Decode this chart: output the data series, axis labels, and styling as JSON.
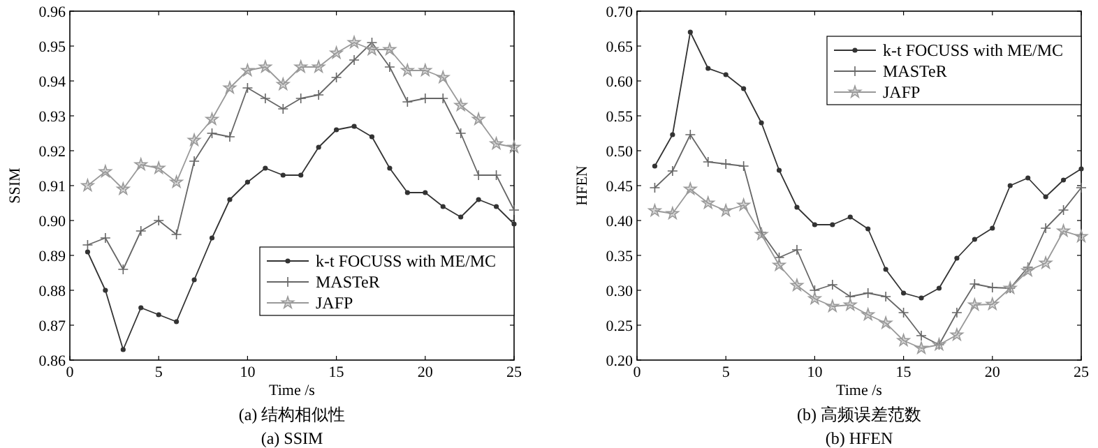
{
  "chart_data": [
    {
      "type": "line",
      "xlabel": "Time /s",
      "ylabel": "SSIM",
      "annotations": [
        "(a) 结构相似性",
        "(a) SSIM"
      ],
      "x": [
        1,
        2,
        3,
        4,
        5,
        6,
        7,
        8,
        9,
        10,
        11,
        12,
        13,
        14,
        15,
        16,
        17,
        18,
        19,
        20,
        21,
        22,
        23,
        24,
        25
      ],
      "xlim": [
        0,
        25
      ],
      "xticks": [
        0,
        5,
        10,
        15,
        20,
        25
      ],
      "ylim": [
        0.86,
        0.96
      ],
      "yticks": [
        0.86,
        0.87,
        0.88,
        0.89,
        {
          "value": 0.9,
          "label": "0.90"
        },
        0.91,
        0.92,
        0.93,
        0.94,
        0.95,
        0.96
      ],
      "grid": false,
      "legend": "bottom right",
      "line_style": "solid",
      "series": [
        {
          "name": "k-t FOCUSS with ME/MC",
          "color": "#333333",
          "marker": "circle",
          "values": [
            0.891,
            0.88,
            0.863,
            0.875,
            0.873,
            0.871,
            0.883,
            0.895,
            0.906,
            0.911,
            0.915,
            0.913,
            0.913,
            0.921,
            0.926,
            0.927,
            0.924,
            0.915,
            0.908,
            0.908,
            0.904,
            0.901,
            0.906,
            0.904,
            0.899
          ]
        },
        {
          "name": "MASTeR",
          "color": "#666666",
          "marker": "cross",
          "values": [
            0.893,
            0.895,
            0.886,
            0.897,
            0.9,
            0.896,
            0.917,
            0.925,
            0.924,
            0.938,
            0.935,
            0.932,
            0.935,
            0.936,
            0.941,
            0.946,
            0.951,
            0.944,
            0.934,
            0.935,
            0.935,
            0.925,
            0.913,
            0.913,
            0.903
          ]
        },
        {
          "name": "JAFP",
          "color": "#999999",
          "marker": "star",
          "values": [
            0.91,
            0.914,
            0.909,
            0.916,
            0.915,
            0.911,
            0.923,
            0.929,
            0.938,
            0.943,
            0.944,
            0.939,
            0.944,
            0.944,
            0.948,
            0.951,
            0.949,
            0.949,
            0.943,
            0.943,
            0.941,
            0.933,
            0.929,
            0.922,
            0.921
          ]
        }
      ]
    },
    {
      "type": "line",
      "xlabel": "Time /s",
      "ylabel": "HFEN",
      "annotations": [
        "(b) 高频误差范数",
        "(b) HFEN"
      ],
      "x": [
        1,
        2,
        3,
        4,
        5,
        6,
        7,
        8,
        9,
        10,
        11,
        12,
        13,
        14,
        15,
        16,
        17,
        18,
        19,
        20,
        21,
        22,
        23,
        24,
        25
      ],
      "xlim": [
        0,
        25
      ],
      "xticks": [
        0,
        5,
        10,
        15,
        20,
        25
      ],
      "ylim": [
        0.2,
        0.7
      ],
      "yticks": [
        {
          "value": 0.2,
          "label": "0.20"
        },
        0.25,
        {
          "value": 0.3,
          "label": "0.30"
        },
        0.35,
        {
          "value": 0.4,
          "label": "0.40"
        },
        0.45,
        {
          "value": 0.5,
          "label": "0.50"
        },
        0.55,
        {
          "value": 0.6,
          "label": "0.60"
        },
        0.65,
        {
          "value": 0.7,
          "label": "0.70"
        }
      ],
      "grid": false,
      "legend": "top right",
      "line_style": "solid",
      "series": [
        {
          "name": "k-t FOCUSS with ME/MC",
          "color": "#333333",
          "marker": "circle",
          "values": [
            0.478,
            0.523,
            0.67,
            0.618,
            0.609,
            0.589,
            0.54,
            0.472,
            0.419,
            0.394,
            0.394,
            0.405,
            0.388,
            0.33,
            0.296,
            0.289,
            0.303,
            0.346,
            0.373,
            0.389,
            0.45,
            0.461,
            0.434,
            0.458,
            0.474
          ]
        },
        {
          "name": "MASTeR",
          "color": "#666666",
          "marker": "cross",
          "values": [
            0.447,
            0.471,
            0.523,
            0.484,
            0.481,
            0.478,
            0.383,
            0.347,
            0.358,
            0.3,
            0.308,
            0.291,
            0.296,
            0.291,
            0.268,
            0.235,
            0.222,
            0.268,
            0.309,
            0.304,
            0.303,
            0.333,
            0.389,
            0.415,
            0.447
          ]
        },
        {
          "name": "JAFP",
          "color": "#999999",
          "marker": "star",
          "values": [
            0.414,
            0.41,
            0.445,
            0.425,
            0.414,
            0.422,
            0.38,
            0.336,
            0.307,
            0.288,
            0.277,
            0.279,
            0.265,
            0.253,
            0.228,
            0.217,
            0.222,
            0.236,
            0.279,
            0.28,
            0.303,
            0.328,
            0.339,
            0.385,
            0.377
          ]
        }
      ]
    }
  ]
}
